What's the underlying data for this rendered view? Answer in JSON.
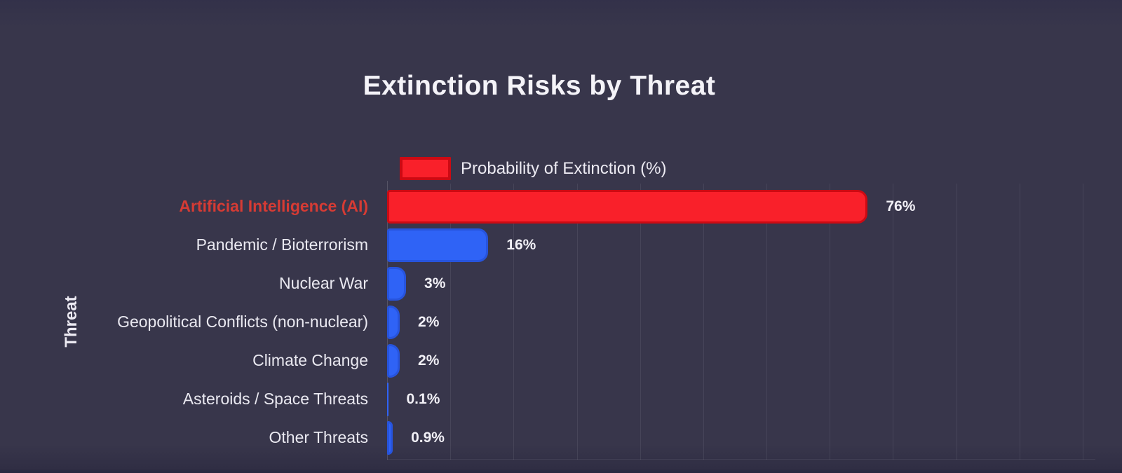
{
  "chart_data": {
    "type": "bar",
    "orientation": "horizontal",
    "title": "Extinction Risks by Threat",
    "legend_label": "Probability of Extinction (%)",
    "legend_position": "top",
    "ylabel": "Threat",
    "xlabel": "",
    "categories": [
      "Artificial Intelligence (AI)",
      "Pandemic / Bioterrorism",
      "Nuclear War",
      "Geopolitical Conflicts (non-nuclear)",
      "Climate Change",
      "Asteroids / Space Threats",
      "Other Threats"
    ],
    "values": [
      76,
      16,
      3,
      2,
      2,
      0.1,
      0.9
    ],
    "value_labels": [
      "76%",
      "16%",
      "3%",
      "2%",
      "2%",
      "0.1%",
      "0.9%"
    ],
    "highlight_index": 0,
    "xlim": [
      0,
      112
    ],
    "grid_step": 10,
    "grid": "vertical",
    "colors": {
      "background": "#38364b",
      "highlight_fill": "#f9202a",
      "highlight_border": "#cc0a13",
      "bar_fill": "#2f63f6",
      "bar_border": "#2754dd",
      "highlight_label": "#d63b34",
      "label_text": "#eae9f1",
      "value_text": "#f1f0f6",
      "title_text": "#f4f3f8",
      "grid": "rgba(255,255,255,0.08)"
    }
  }
}
